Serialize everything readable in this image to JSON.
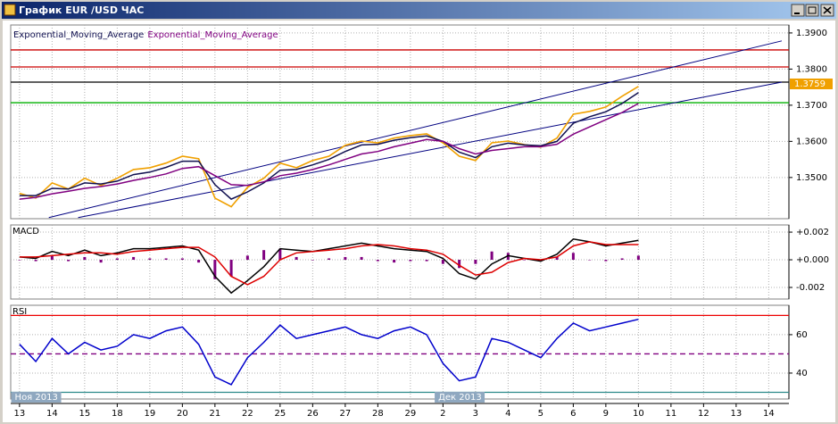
{
  "window": {
    "title": "График EUR /USD ЧАС"
  },
  "chart_data": [
    {
      "type": "line",
      "x": [
        0,
        0.5,
        1,
        1.5,
        2,
        2.5,
        3,
        3.5,
        4,
        4.5,
        5,
        5.5,
        6,
        6.5,
        7,
        7.5,
        8,
        8.5,
        9,
        9.5,
        10,
        10.5,
        11,
        11.5,
        12,
        12.5,
        13,
        13.5,
        14,
        14.5,
        15,
        15.5,
        16,
        16.5,
        17,
        17.5,
        18,
        18.5,
        19
      ],
      "values": [
        1.3456,
        1.3443,
        1.3485,
        1.3468,
        1.3498,
        1.3478,
        1.3498,
        1.3522,
        1.3527,
        1.354,
        1.3559,
        1.3552,
        1.3443,
        1.3419,
        1.3473,
        1.3498,
        1.354,
        1.3527,
        1.3547,
        1.3559,
        1.3589,
        1.3601,
        1.3596,
        1.3609,
        1.3616,
        1.3621,
        1.3596,
        1.3559,
        1.3547,
        1.3596,
        1.3601,
        1.3591,
        1.3584,
        1.3609,
        1.3675,
        1.3683,
        1.3695,
        1.3725,
        1.3752
      ],
      "color": "#f0a000",
      "series": [
        {
          "name": "Exponential_Moving_Average",
          "color": "#101050",
          "values": [
            1.345,
            1.345,
            1.347,
            1.3468,
            1.3485,
            1.3482,
            1.349,
            1.3508,
            1.3515,
            1.3528,
            1.3545,
            1.3545,
            1.348,
            1.344,
            1.346,
            1.3485,
            1.352,
            1.3522,
            1.3535,
            1.355,
            1.3572,
            1.359,
            1.3592,
            1.3603,
            1.361,
            1.3615,
            1.36,
            1.357,
            1.3555,
            1.3585,
            1.3595,
            1.359,
            1.3588,
            1.36,
            1.365,
            1.3668,
            1.3682,
            1.3705,
            1.3735
          ]
        },
        {
          "name": "Exponential_Moving_Average",
          "color": "#800080",
          "values": [
            1.344,
            1.3445,
            1.3455,
            1.3462,
            1.347,
            1.3475,
            1.3482,
            1.3492,
            1.35,
            1.351,
            1.3525,
            1.353,
            1.3505,
            1.348,
            1.3478,
            1.3488,
            1.3505,
            1.3512,
            1.3522,
            1.3535,
            1.355,
            1.3565,
            1.3572,
            1.3585,
            1.3595,
            1.3605,
            1.36,
            1.358,
            1.3565,
            1.3575,
            1.358,
            1.3585,
            1.3585,
            1.3592,
            1.362,
            1.364,
            1.366,
            1.368,
            1.3705
          ]
        }
      ],
      "levels": [
        {
          "value": 1.3853,
          "color": "#cc0000"
        },
        {
          "value": 1.3806,
          "color": "#cc0000"
        },
        {
          "value": 1.3764,
          "color": "#000000"
        },
        {
          "value": 1.3707,
          "color": "#00b000"
        }
      ],
      "trendlines": [
        {
          "x": [
            0.9,
            23.4
          ],
          "y": [
            1.3389,
            1.3878
          ],
          "color": "#000080"
        },
        {
          "x": [
            1.8,
            23.4
          ],
          "y": [
            1.3389,
            1.3764
          ],
          "color": "#000080"
        }
      ],
      "last_price": 1.3759,
      "last_price_color": "#f0a000",
      "xlim": [
        -0.27,
        23.62
      ],
      "ylim": [
        1.3386,
        1.3922
      ],
      "yticks": [
        {
          "value": 1.39,
          "label": "1.3900"
        },
        {
          "value": 1.38,
          "label": "1.3800"
        },
        {
          "value": 1.37,
          "label": "1.3700"
        },
        {
          "value": 1.36,
          "label": "1.3600"
        },
        {
          "value": 1.35,
          "label": "1.3500"
        }
      ],
      "grid": true
    },
    {
      "type": "line",
      "title": "MACD",
      "x": [
        0,
        0.5,
        1,
        1.5,
        2,
        2.5,
        3,
        3.5,
        4,
        4.5,
        5,
        5.5,
        6,
        6.5,
        7,
        7.5,
        8,
        8.5,
        9,
        9.5,
        10,
        10.5,
        11,
        11.5,
        12,
        12.5,
        13,
        13.5,
        14,
        14.5,
        15,
        15.5,
        16,
        16.5,
        17,
        17.5,
        18,
        18.5,
        19
      ],
      "series": [
        {
          "color": "#000000",
          "values": [
            0.0002,
            0.0001,
            0.0006,
            0.0003,
            0.0007,
            0.0003,
            0.0005,
            0.0008,
            0.0008,
            0.0009,
            0.001,
            0.0007,
            -0.0012,
            -0.0024,
            -0.0015,
            -0.0005,
            0.0008,
            0.0007,
            0.0006,
            0.0008,
            0.001,
            0.0012,
            0.001,
            0.0008,
            0.0007,
            0.0006,
            0.0001,
            -0.001,
            -0.0014,
            -0.0003,
            0.0003,
            0.0001,
            -0.0001,
            0.0004,
            0.0015,
            0.0013,
            0.001,
            0.0012,
            0.0014
          ]
        },
        {
          "color": "#dd0000",
          "values": [
            0.0002,
            0.0002,
            0.0003,
            0.0004,
            0.0005,
            0.0005,
            0.0004,
            0.0006,
            0.0007,
            0.0008,
            0.0009,
            0.0009,
            0.0002,
            -0.0012,
            -0.0018,
            -0.0012,
            0,
            0.0005,
            0.0006,
            0.0007,
            0.0008,
            0.001,
            0.0011,
            0.001,
            0.0008,
            0.0007,
            0.0004,
            -0.0004,
            -0.0011,
            -0.0009,
            -0.0002,
            0.0001,
            0,
            0.0002,
            0.001,
            0.0013,
            0.0011,
            0.0011,
            0.0011
          ]
        }
      ],
      "histogram": [
        0,
        -0.0001,
        0.0003,
        -0.0001,
        0.0002,
        -0.0002,
        0.0001,
        0.0002,
        0.0001,
        0.0001,
        0.0001,
        -0.0002,
        -0.0014,
        -0.0012,
        0.0003,
        0.0007,
        0.0008,
        0.0002,
        0,
        0.0001,
        0.0002,
        0.0002,
        -0.0001,
        -0.0002,
        -0.0001,
        -0.0001,
        -0.0003,
        -0.0006,
        -0.0003,
        0.0006,
        0.0005,
        0,
        -0.0001,
        0.0002,
        0.0005,
        0,
        -0.0001,
        0.0001,
        0.0003
      ],
      "histogram_color": "#800080",
      "xlim": [
        -0.27,
        23.62
      ],
      "ylim": [
        -0.00284,
        0.00252
      ],
      "yticks": [
        {
          "value": 0.002,
          "label": "+0.002"
        },
        {
          "value": 0,
          "label": "+0.000"
        },
        {
          "value": -0.002,
          "label": "-0.002"
        }
      ],
      "grid": true
    },
    {
      "type": "line",
      "title": "RSI",
      "x": [
        0,
        0.5,
        1,
        1.5,
        2,
        2.5,
        3,
        3.5,
        4,
        4.5,
        5,
        5.5,
        6,
        6.5,
        7,
        7.5,
        8,
        8.5,
        9,
        9.5,
        10,
        10.5,
        11,
        11.5,
        12,
        12.5,
        13,
        13.5,
        14,
        14.5,
        15,
        15.5,
        16,
        16.5,
        17,
        17.5,
        18,
        18.5,
        19
      ],
      "series": [
        {
          "color": "#0000cc",
          "values": [
            55,
            46,
            58,
            50,
            56,
            52,
            54,
            60,
            58,
            62,
            64,
            55,
            38,
            34,
            48,
            56,
            65,
            58,
            60,
            62,
            64,
            60,
            58,
            62,
            64,
            60,
            45,
            36,
            38,
            58,
            56,
            52,
            48,
            58,
            66,
            62,
            64,
            66,
            68
          ]
        }
      ],
      "levels": [
        {
          "value": 70,
          "color": "#ee0000"
        },
        {
          "value": 50,
          "color": "#800080",
          "dashed": true
        },
        {
          "value": 30,
          "color": "#2a8a8a"
        }
      ],
      "xlim": [
        -0.27,
        23.62
      ],
      "ylim": [
        26.5,
        75.3
      ],
      "yticks": [
        60,
        40
      ],
      "xticks": [
        {
          "value": 0,
          "label": "13"
        },
        {
          "value": 1,
          "label": "14"
        },
        {
          "value": 2,
          "label": "15"
        },
        {
          "value": 3,
          "label": "18"
        },
        {
          "value": 4,
          "label": "19"
        },
        {
          "value": 5,
          "label": "20"
        },
        {
          "value": 6,
          "label": "21"
        },
        {
          "value": 7,
          "label": "22"
        },
        {
          "value": 8,
          "label": "25"
        },
        {
          "value": 9,
          "label": "26"
        },
        {
          "value": 10,
          "label": "27"
        },
        {
          "value": 11,
          "label": "28"
        },
        {
          "value": 12,
          "label": "29"
        },
        {
          "value": 13,
          "label": "2"
        },
        {
          "value": 14,
          "label": "3"
        },
        {
          "value": 15,
          "label": "4"
        },
        {
          "value": 16,
          "label": "5"
        },
        {
          "value": 17,
          "label": "6"
        },
        {
          "value": 18,
          "label": "9"
        },
        {
          "value": 19,
          "label": "10"
        },
        {
          "value": 20,
          "label": "11"
        },
        {
          "value": 21,
          "label": "12"
        },
        {
          "value": 22,
          "label": "13"
        },
        {
          "value": 23,
          "label": "14"
        }
      ],
      "month_labels": [
        {
          "value": -0.2,
          "label": "Ноя 2013"
        },
        {
          "value": 12.8,
          "label": "Дек 2013"
        }
      ],
      "grid": true
    }
  ]
}
